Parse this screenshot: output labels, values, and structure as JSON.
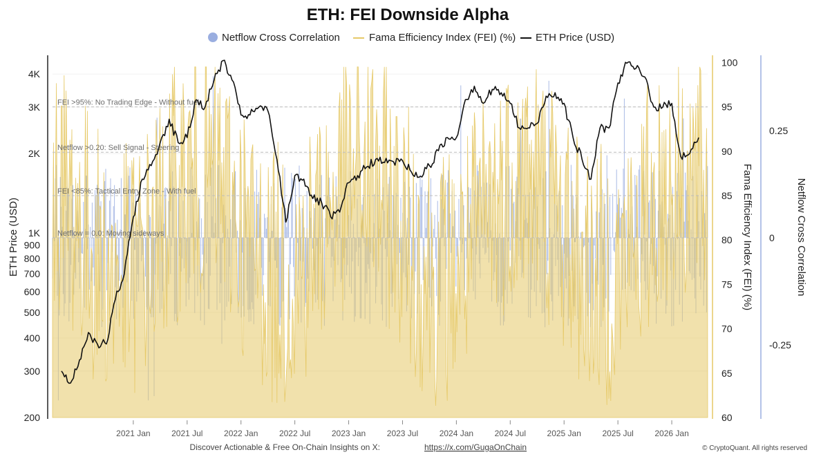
{
  "chart_data": {
    "type": "line",
    "title": "ETH: FEI Downside Alpha",
    "legend": {
      "placement": "top-center",
      "entries": [
        {
          "label": "Netflow Cross Correlation",
          "marker": "dot",
          "color": "#9aaee0"
        },
        {
          "label": "Fama Efficiency Index (FEI) (%)",
          "marker": "line",
          "color": "#e6c967"
        },
        {
          "label": "ETH Price (USD)",
          "marker": "line",
          "color": "#111111"
        }
      ]
    },
    "x_axis": {
      "ticks": [
        "2021 Jan",
        "2021 Jul",
        "2022 Jan",
        "2022 Jul",
        "2023 Jan",
        "2023 Jul",
        "2024 Jan",
        "2024 Jul",
        "2025 Jan",
        "2025 Jul",
        "2026 Jan"
      ],
      "range": [
        "2020-04",
        "2026-05"
      ]
    },
    "y_left": {
      "label": "ETH Price (USD)",
      "scale": "log",
      "range": [
        200,
        4600
      ],
      "ticks": [
        {
          "value": 200,
          "label": "200"
        },
        {
          "value": 300,
          "label": "300"
        },
        {
          "value": 400,
          "label": "400"
        },
        {
          "value": 500,
          "label": "500"
        },
        {
          "value": 600,
          "label": "600"
        },
        {
          "value": 700,
          "label": "700"
        },
        {
          "value": 800,
          "label": "800"
        },
        {
          "value": 900,
          "label": "900"
        },
        {
          "value": 1000,
          "label": "1K"
        },
        {
          "value": 2000,
          "label": "2K"
        },
        {
          "value": 3000,
          "label": "3K"
        },
        {
          "value": 4000,
          "label": "4K"
        }
      ]
    },
    "y_mid": {
      "label": "Fama Efficiency Index (FEI) (%)",
      "range": [
        60,
        100.5
      ],
      "ticks": [
        60,
        65,
        70,
        75,
        80,
        85,
        90,
        95,
        100
      ]
    },
    "y_right": {
      "label": "Netflow Cross Correlation",
      "range": [
        -0.42,
        0.42
      ],
      "ticks": [
        {
          "value": 0.25,
          "label": "0.25"
        },
        {
          "value": 0,
          "label": "0"
        },
        {
          "value": -0.25,
          "label": "-0.25"
        }
      ]
    },
    "annotations": [
      {
        "text": "FEI >95%: No Trading Edge - Without fuel",
        "axis": "fei",
        "value": 95
      },
      {
        "text": "Netflow >0.20: Sell Signal - Steering",
        "axis": "netflow",
        "value": 0.2
      },
      {
        "text": "FEI <85%: Tactical Entry Zone - With fuel",
        "axis": "fei",
        "value": 85
      },
      {
        "text": "Netflow = 0.0: Moving sideways",
        "axis": "netflow",
        "value": 0
      }
    ],
    "series": [
      {
        "name": "ETH Price (USD)",
        "axis": "left",
        "color": "#111111",
        "x": [
          "2020-05",
          "2020-06",
          "2020-07",
          "2020-08",
          "2020-09",
          "2020-10",
          "2020-11",
          "2020-12",
          "2021-01",
          "2021-02",
          "2021-03",
          "2021-04",
          "2021-05",
          "2021-06",
          "2021-07",
          "2021-08",
          "2021-09",
          "2021-10",
          "2021-11",
          "2021-12",
          "2022-01",
          "2022-02",
          "2022-03",
          "2022-04",
          "2022-05",
          "2022-06",
          "2022-07",
          "2022-08",
          "2022-09",
          "2022-10",
          "2022-11",
          "2022-12",
          "2023-01",
          "2023-02",
          "2023-03",
          "2023-04",
          "2023-05",
          "2023-06",
          "2023-07",
          "2023-08",
          "2023-09",
          "2023-10",
          "2023-11",
          "2023-12",
          "2024-01",
          "2024-02",
          "2024-03",
          "2024-04",
          "2024-05",
          "2024-06",
          "2024-07",
          "2024-08",
          "2024-09",
          "2024-10",
          "2024-11",
          "2024-12",
          "2025-01",
          "2025-02",
          "2025-03",
          "2025-04",
          "2025-05",
          "2025-06",
          "2025-07",
          "2025-08",
          "2025-09",
          "2025-10",
          "2025-11",
          "2025-12",
          "2026-01",
          "2026-02",
          "2026-03",
          "2026-04"
        ],
        "values": [
          300,
          270,
          330,
          420,
          380,
          380,
          560,
          700,
          1150,
          1600,
          1800,
          2200,
          2700,
          2200,
          2300,
          3200,
          3000,
          3800,
          4500,
          3800,
          2800,
          2800,
          3000,
          2900,
          1900,
          1100,
          1650,
          1600,
          1350,
          1300,
          1150,
          1200,
          1550,
          1650,
          1780,
          1900,
          1850,
          1860,
          1880,
          1700,
          1640,
          1800,
          2050,
          2300,
          2300,
          3200,
          3600,
          3100,
          3500,
          3400,
          3100,
          2500,
          2500,
          2600,
          3300,
          3400,
          3100,
          2300,
          1900,
          1600,
          2500,
          2500,
          3700,
          4400,
          4200,
          3900,
          3000,
          3000,
          3100,
          1950,
          2000,
          2300
        ]
      },
      {
        "name": "Fama Efficiency Index (FEI) (%)",
        "axis": "fei",
        "color": "#e6c967",
        "style": "area-from-bottom"
      },
      {
        "name": "Netflow Cross Correlation",
        "axis": "netflow",
        "color": "#9aaee0",
        "style": "bars-from-zero"
      }
    ],
    "grid": true
  },
  "footer": {
    "text": "Discover Actionable & Free On-Chain Insights on X:",
    "link": "https://x.com/GugaOnChain",
    "copyright": "© CryptoQuant. All rights reserved"
  }
}
